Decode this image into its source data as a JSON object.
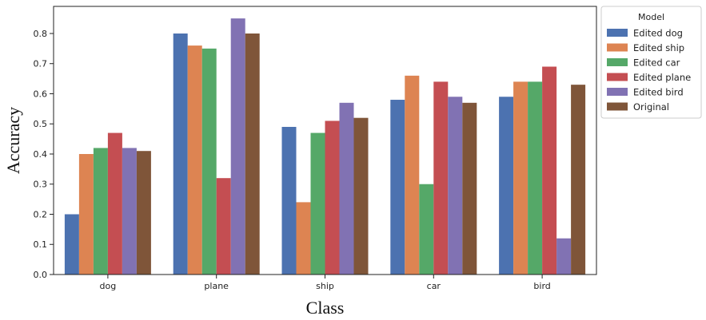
{
  "chart_data": {
    "type": "bar",
    "title": "",
    "xlabel": "Class",
    "ylabel": "Accuracy",
    "categories": [
      "dog",
      "plane",
      "ship",
      "car",
      "bird"
    ],
    "ylim": [
      0,
      0.89
    ],
    "yticks": [
      "0.0",
      "0.1",
      "0.2",
      "0.3",
      "0.4",
      "0.5",
      "0.6",
      "0.7",
      "0.8"
    ],
    "grid": false,
    "legend": {
      "title": "Model",
      "placement": "outside-right-top"
    },
    "series": [
      {
        "name": "Edited dog",
        "color": "#4c72b0",
        "values": [
          0.2,
          0.8,
          0.49,
          0.58,
          0.59
        ]
      },
      {
        "name": "Edited ship",
        "color": "#dd8452",
        "values": [
          0.4,
          0.76,
          0.24,
          0.66,
          0.64
        ]
      },
      {
        "name": "Edited car",
        "color": "#55a868",
        "values": [
          0.42,
          0.75,
          0.47,
          0.3,
          0.64
        ]
      },
      {
        "name": "Edited plane",
        "color": "#c44e52",
        "values": [
          0.47,
          0.32,
          0.51,
          0.64,
          0.69
        ]
      },
      {
        "name": "Edited bird",
        "color": "#8172b3",
        "values": [
          0.42,
          0.85,
          0.57,
          0.59,
          0.12
        ]
      },
      {
        "name": "Original",
        "color": "#7f5539",
        "values": [
          0.41,
          0.8,
          0.52,
          0.57,
          0.63
        ]
      }
    ]
  }
}
